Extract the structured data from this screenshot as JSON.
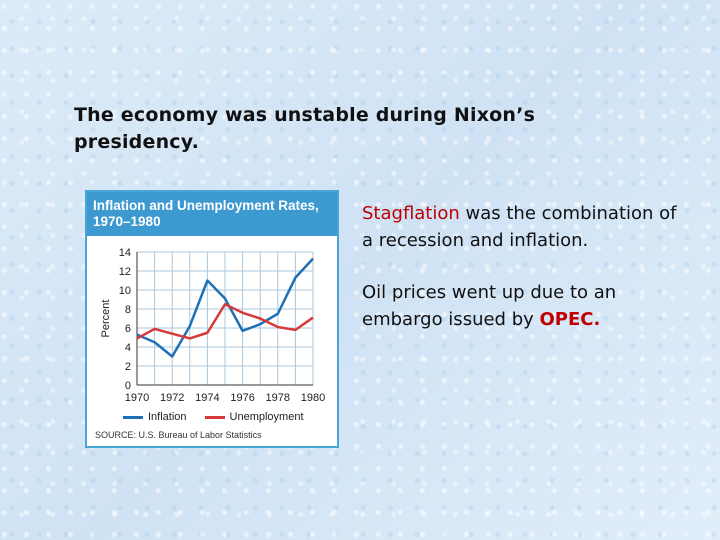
{
  "heading": "The economy was unstable during Nixon’s presidency.",
  "bullets": {
    "b1_term": "Stagflation",
    "b1_rest": " was the combination of a recession and inflation.",
    "b2_text": "Oil prices went up due to an embargo issued by ",
    "b2_term": "OPEC."
  },
  "colors": {
    "accent_red": "#c00000",
    "title_band": "#3d9ad1"
  },
  "chart_data": {
    "type": "line",
    "title": "Inflation and Unemployment Rates, 1970–1980",
    "ylabel": "Percent",
    "xlabel": "",
    "xlim": [
      1970,
      1980
    ],
    "ylim": [
      0,
      14
    ],
    "xticks": [
      1970,
      1972,
      1974,
      1976,
      1978,
      1980
    ],
    "yticks": [
      0,
      2,
      4,
      6,
      8,
      10,
      12,
      14
    ],
    "grid": true,
    "legend_placement": "bottom",
    "series": [
      {
        "name": "Inflation",
        "color": "#1f6fb5",
        "x": [
          1970,
          1971,
          1972,
          1973,
          1974,
          1975,
          1976,
          1977,
          1978,
          1979,
          1980
        ],
        "y": [
          5.3,
          4.5,
          3.0,
          6.2,
          11.0,
          9.1,
          5.7,
          6.4,
          7.5,
          11.3,
          13.3
        ]
      },
      {
        "name": "Unemployment",
        "color": "#d63a3a",
        "x": [
          1970,
          1971,
          1972,
          1973,
          1974,
          1975,
          1976,
          1977,
          1978,
          1979,
          1980
        ],
        "y": [
          4.9,
          5.9,
          5.4,
          4.9,
          5.5,
          8.5,
          7.6,
          7.0,
          6.1,
          5.8,
          7.1
        ]
      }
    ],
    "source": "SOURCE: U.S. Bureau of Labor Statistics"
  }
}
